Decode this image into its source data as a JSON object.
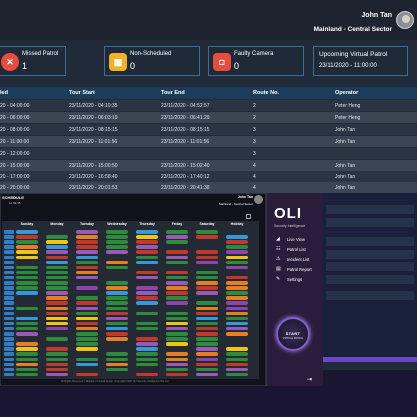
{
  "header": {
    "user_name": "John Tan",
    "sector": "Mainland - Central Sector"
  },
  "cards": {
    "missed_patrol": {
      "label": "Missed Patrol",
      "count": "1",
      "color": "#e74c3c",
      "icon": "x-icon"
    },
    "non_scheduled": {
      "label": "Non-Scheduled",
      "count": "0",
      "color": "#f3b325",
      "icon": "calendar-icon"
    },
    "faulty_camera": {
      "label": "Faulty Camera",
      "count": "0",
      "color": "#e74c3c",
      "icon": "camera-icon"
    },
    "upcoming_virtual_patrol": {
      "label": "Upcoming Virtual Patrol",
      "datetime": "23/11/2020 - 11:00:00"
    }
  },
  "table": {
    "columns": [
      "led",
      "Tour Start",
      "Tour End",
      "Route No.",
      "Operator"
    ],
    "rows": [
      [
        "20 - 04:00:00",
        "23/11/2020 - 04:10:35",
        "23/11/2020 - 04:52:57",
        "2",
        "Peter Heng"
      ],
      [
        "20 - 06:00:00",
        "23/11/2020 - 06:03:19",
        "23/11/2020 - 06:41:29",
        "2",
        "Peter Heng"
      ],
      [
        "20 - 08:00:00",
        "23/11/2020 - 08:15:15",
        "23/11/2020 - 08:15:15",
        "3",
        "John Tan"
      ],
      [
        "20 - 11:00:00",
        "23/11/2020 - 11:01:56",
        "23/11/2020 - 11:01:56",
        "3",
        "John Tan"
      ],
      [
        "20 - 12:00:00",
        "",
        "",
        "3",
        ""
      ],
      [
        "20 - 15:00:00",
        "23/11/2020 - 15:00:50",
        "23/11/2020 - 15:02:40",
        "4",
        "John Tan"
      ],
      [
        "20 - 17:00:00",
        "23/11/2020 - 16:58:40",
        "23/11/2020 - 17:40:12",
        "4",
        "John Tan"
      ],
      [
        "20 - 20:00:00",
        "23/11/2020 - 20:01:53",
        "23/11/2020 - 20:41:38",
        "4",
        "John Tan"
      ]
    ]
  },
  "schedule": {
    "title": "SCHEDULE",
    "date": "11.69.35",
    "user_name": "John Tan",
    "sector": "Mainland - Central Sector",
    "days": [
      "Sunday",
      "Monday",
      "Tuesday",
      "Wednesday",
      "Thursday",
      "Friday",
      "Saturday",
      "Holiday"
    ],
    "footer": "All Rights Reserved © Mainland Central Sector | Copyright 2020 OLI Security Intelligence Pte Ltd"
  },
  "sidebar": {
    "logo": "OLI",
    "subtitle": "Security Intelligence",
    "nav": [
      {
        "label": "Live View",
        "icon": "cctv-icon"
      },
      {
        "label": "Patrol List",
        "icon": "patrol-list-icon"
      },
      {
        "label": "Incident List",
        "icon": "warning-icon"
      },
      {
        "label": "Patrol Report",
        "icon": "report-icon"
      },
      {
        "label": "Settings",
        "icon": "wrench-icon"
      }
    ],
    "start_label": "START",
    "start_sub": "VIRTUAL PATROL"
  }
}
